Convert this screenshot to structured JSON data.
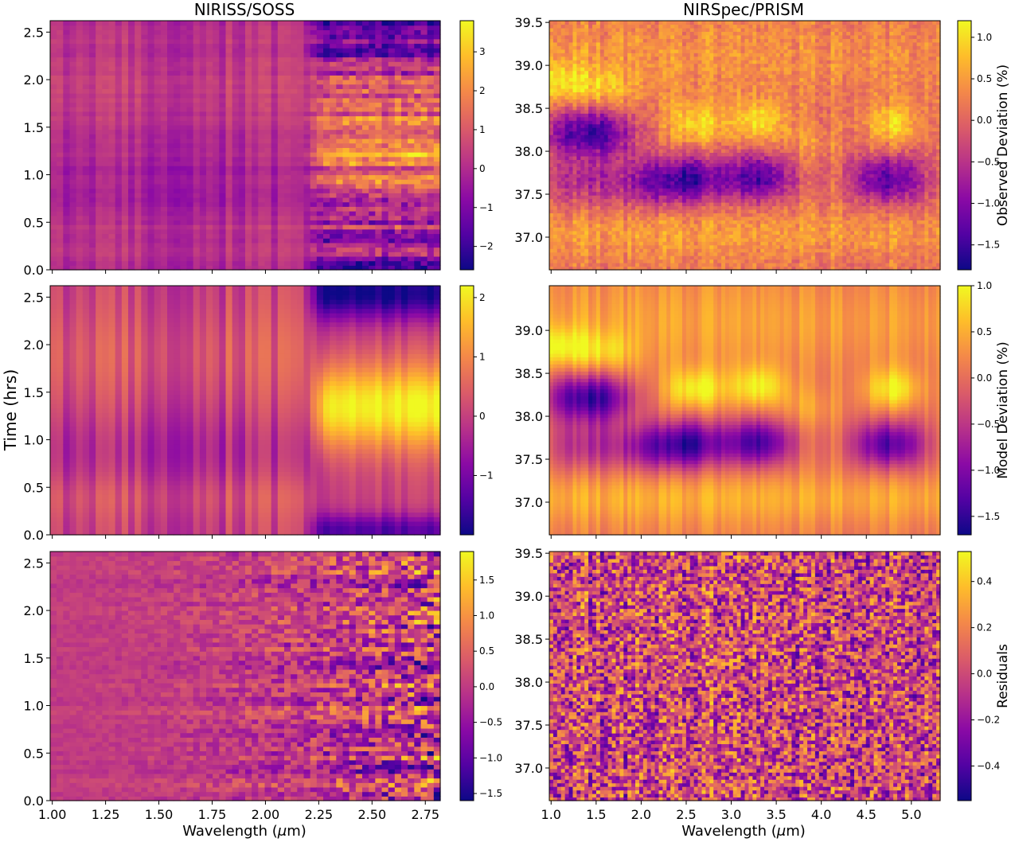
{
  "colors": {
    "colormap": "plasma",
    "colormap_stops": [
      "#0d0887",
      "#5302a3",
      "#8b0aa5",
      "#b83289",
      "#db5c68",
      "#f48849",
      "#febd2a",
      "#f0f921"
    ],
    "frame": "#000000",
    "background": "#ffffff"
  },
  "titles": {
    "left": "NIRISS/SOSS",
    "right": "NIRSpec/PRISM"
  },
  "shared_labels": {
    "ylabel": "Time (hrs)",
    "xlabel_left": "Wavelength ($\\mu$m)",
    "xlabel_right": "Wavelength ($\\mu$m)"
  },
  "chart_data": [
    {
      "type": "heatmap",
      "panel": "row1-left",
      "title": "NIRISS/SOSS",
      "xlabel": "",
      "ylabel": "",
      "xlim": [
        0.99,
        2.82
      ],
      "ylim": [
        0.0,
        2.62
      ],
      "x_ticks": [],
      "y_ticks": [
        0.0,
        0.5,
        1.0,
        1.5,
        2.0,
        2.5
      ],
      "y_tick_labels": [
        "0.0",
        "0.5",
        "1.0",
        "1.5",
        "2.0",
        "2.5"
      ],
      "colorbar": {
        "label": "",
        "range": [
          -2.6,
          3.8
        ],
        "ticks": [
          3,
          2,
          1,
          0,
          -1,
          -2
        ],
        "tick_labels": [
          "3",
          "2",
          "1",
          "0",
          "−1",
          "−2"
        ]
      },
      "columns": 60,
      "rows": 55,
      "noise": 0.05,
      "columns_summary": "values ≈0 left of 2.2 µm with darker/brighter vertical stripes; from 2.2 µm onward high (≈+1.5 to +2.5) around 1.3–1.7 hrs and low (≈−1 to −2) near 2.5 hrs"
    },
    {
      "type": "heatmap",
      "panel": "row1-right",
      "title": "NIRSpec/PRISM",
      "xlabel": "",
      "ylabel": "",
      "xlim": [
        0.98,
        5.32
      ],
      "ylim": [
        36.62,
        39.52
      ],
      "x_ticks": [],
      "y_ticks": [
        37.0,
        37.5,
        38.0,
        38.5,
        39.0,
        39.5
      ],
      "y_tick_labels": [
        "37.0",
        "37.5",
        "38.0",
        "38.5",
        "39.0",
        "39.5"
      ],
      "colorbar": {
        "label": "Observed Deviation (%)",
        "range": [
          -1.8,
          1.2
        ],
        "ticks": [
          1.0,
          0.5,
          0.0,
          -0.5,
          -1.0,
          -1.5
        ],
        "tick_labels": [
          "1.0",
          "0.5",
          "0.0",
          "−0.5",
          "−1.0",
          "−1.5"
        ]
      },
      "columns": 100,
      "rows": 70,
      "noise": 0.07,
      "columns_summary": "dark minima (≈−1.3) near 37.7 hrs at 2.2–2.9, 3.1–3.5, 4.3–5.2 µm and near 38.2 hrs at 1.0–1.7 µm; bright maxima (≈+0.8) near 38.3 hrs at 2.4–2.8, 3.2–3.5, 4.6–5.0 µm"
    },
    {
      "type": "heatmap",
      "panel": "row2-left",
      "title": "",
      "xlabel": "",
      "ylabel": "Time (hrs)",
      "xlim": [
        0.99,
        2.82
      ],
      "ylim": [
        0.0,
        2.62
      ],
      "x_ticks": [],
      "y_ticks": [
        0.0,
        0.5,
        1.0,
        1.5,
        2.0,
        2.5
      ],
      "y_tick_labels": [
        "0.0",
        "0.5",
        "1.0",
        "1.5",
        "2.0",
        "2.5"
      ],
      "colorbar": {
        "label": "",
        "range": [
          -2.0,
          2.2
        ],
        "ticks": [
          2,
          1,
          0,
          -1
        ],
        "tick_labels": [
          "2",
          "1",
          "0",
          "−1"
        ]
      },
      "columns": 60,
      "rows": 55,
      "noise": 0.0,
      "columns_summary": "smooth model of row 1; yellow maximum (≈+2) near 2.35 µm, 1.2 hrs; dark minimum (≈−1.5) near 2.3–2.8 µm, 2.5 hrs"
    },
    {
      "type": "heatmap",
      "panel": "row2-right",
      "title": "",
      "xlabel": "",
      "ylabel": "",
      "xlim": [
        0.98,
        5.32
      ],
      "ylim": [
        36.62,
        39.52
      ],
      "x_ticks": [],
      "y_ticks": [
        37.0,
        37.5,
        38.0,
        38.5,
        39.0
      ],
      "y_tick_labels": [
        "37.0",
        "37.5",
        "38.0",
        "38.5",
        "39.0"
      ],
      "colorbar": {
        "label": "Model Deviation (%)",
        "range": [
          -1.7,
          1.0
        ],
        "ticks": [
          1.0,
          0.5,
          0.0,
          -0.5,
          -1.0,
          -1.5
        ],
        "tick_labels": [
          "1.0",
          "0.5",
          "0.0",
          "−0.5",
          "−1.0",
          "−1.5"
        ]
      },
      "columns": 100,
      "rows": 70,
      "noise": 0.0,
      "columns_summary": "smooth model of row 1 right panel, same dark/bright blobs"
    },
    {
      "type": "heatmap",
      "panel": "row3-left",
      "title": "",
      "xlabel": "Wavelength ($\\mu$m)",
      "ylabel": "",
      "xlim": [
        0.99,
        2.82
      ],
      "ylim": [
        0.0,
        2.62
      ],
      "x_ticks": [
        1.0,
        1.25,
        1.5,
        1.75,
        2.0,
        2.25,
        2.5,
        2.75
      ],
      "x_tick_labels": [
        "1.00",
        "1.25",
        "1.50",
        "1.75",
        "2.00",
        "2.25",
        "2.50",
        "2.75"
      ],
      "y_ticks": [
        0.0,
        0.5,
        1.0,
        1.5,
        2.0,
        2.5
      ],
      "y_tick_labels": [
        "0.0",
        "0.5",
        "1.0",
        "1.5",
        "2.0",
        "2.5"
      ],
      "colorbar": {
        "label": "",
        "range": [
          -1.6,
          1.9
        ],
        "ticks": [
          1.5,
          1.0,
          0.5,
          0.0,
          -0.5,
          -1.0,
          -1.5
        ],
        "tick_labels": [
          "1.5",
          "1.0",
          "0.5",
          "0.0",
          "−0.5",
          "−1.0",
          "−1.5"
        ]
      },
      "columns": 60,
      "rows": 55,
      "noise": 0.0,
      "columns_summary": "residuals ≈0 with row-wise noise that grows from ±0.2 at 1 µm to ±1.5 at 2.8 µm"
    },
    {
      "type": "heatmap",
      "panel": "row3-right",
      "title": "",
      "xlabel": "Wavelength ($\\mu$m)",
      "ylabel": "",
      "xlim": [
        0.98,
        5.32
      ],
      "ylim": [
        36.62,
        39.52
      ],
      "x_ticks": [
        1.0,
        1.5,
        2.0,
        2.5,
        3.0,
        3.5,
        4.0,
        4.5,
        5.0
      ],
      "x_tick_labels": [
        "1.0",
        "1.5",
        "2.0",
        "2.5",
        "3.0",
        "3.5",
        "4.0",
        "4.5",
        "5.0"
      ],
      "y_ticks": [
        37.0,
        37.5,
        38.0,
        38.5,
        39.0,
        39.5
      ],
      "y_tick_labels": [
        "37.0",
        "37.5",
        "38.0",
        "38.5",
        "39.0",
        "39.5"
      ],
      "colorbar": {
        "label": "Residuals",
        "range": [
          -0.55,
          0.53
        ],
        "ticks": [
          0.4,
          0.2,
          0.0,
          -0.2,
          -0.4
        ],
        "tick_labels": [
          "0.4",
          "0.2",
          "0.0",
          "−0.2",
          "−0.4"
        ]
      },
      "columns": 100,
      "rows": 70,
      "noise": 0.0,
      "columns_summary": "residuals ≈0 with pixel noise of about ±0.3"
    }
  ]
}
